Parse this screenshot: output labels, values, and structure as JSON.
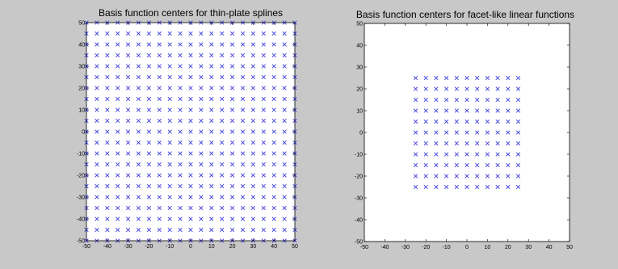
{
  "figure": {
    "background": "#c8c8c8",
    "axes_background": "#ffffff",
    "marker_color": "#3b3bdc"
  },
  "chart_data": [
    {
      "type": "scatter",
      "title": "Basis function centers for thin-plate splines",
      "xlabel": "",
      "ylabel": "",
      "xlim": [
        -50,
        50
      ],
      "ylim": [
        -50,
        50
      ],
      "xticks": [
        -50,
        -40,
        -30,
        -20,
        -10,
        0,
        10,
        20,
        30,
        40,
        50
      ],
      "yticks": [
        50,
        40,
        30,
        20,
        10,
        0,
        -10,
        -20,
        -30,
        -40,
        -50
      ],
      "grid": false,
      "marker": "x",
      "series": [
        {
          "grid_points": {
            "x_start": -50,
            "x_end": 50,
            "x_step": 5,
            "y_start": -50,
            "y_end": 50,
            "y_step": 5
          }
        }
      ]
    },
    {
      "type": "scatter",
      "title": "Basis function centers for facet-like linear functions",
      "xlabel": "",
      "ylabel": "",
      "xlim": [
        -50,
        50
      ],
      "ylim": [
        -50,
        50
      ],
      "xticks": [
        -50,
        -40,
        -30,
        -20,
        -10,
        0,
        10,
        20,
        30,
        40,
        50
      ],
      "yticks": [
        50,
        40,
        30,
        20,
        10,
        0,
        -10,
        -20,
        -30,
        -40,
        -50
      ],
      "grid": false,
      "marker": "x",
      "series": [
        {
          "grid_points": {
            "x_start": -25,
            "x_end": 25,
            "x_step": 5,
            "y_start": -25,
            "y_end": 25,
            "y_step": 5
          }
        }
      ]
    }
  ]
}
